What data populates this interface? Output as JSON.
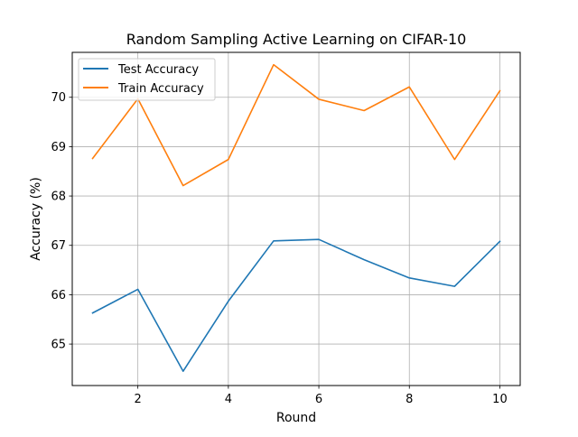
{
  "chart_data": {
    "type": "line",
    "title": "Random Sampling Active Learning on CIFAR-10",
    "xlabel": "Round",
    "ylabel": "Accuracy (%)",
    "x": [
      1,
      2,
      3,
      4,
      5,
      6,
      7,
      8,
      9,
      10
    ],
    "xlim": [
      0.55,
      10.45
    ],
    "ylim": [
      64.16,
      70.91
    ],
    "xticks": [
      2,
      4,
      6,
      8,
      10
    ],
    "yticks": [
      65,
      66,
      67,
      68,
      69,
      70
    ],
    "xtick_labels": [
      "2",
      "4",
      "6",
      "8",
      "10"
    ],
    "ytick_labels": [
      "65",
      "66",
      "67",
      "68",
      "69",
      "70"
    ],
    "grid": true,
    "legend": {
      "placement": "top-left",
      "entries": [
        {
          "label": "Test Accuracy",
          "color": "#1f77b4"
        },
        {
          "label": "Train Accuracy",
          "color": "#ff7f0e"
        }
      ]
    },
    "series": [
      {
        "name": "Test Accuracy",
        "color": "#1f77b4",
        "values": [
          65.63,
          66.11,
          64.45,
          65.87,
          67.09,
          67.12,
          66.71,
          66.34,
          66.17,
          67.08
        ]
      },
      {
        "name": "Train Accuracy",
        "color": "#ff7f0e",
        "values": [
          68.76,
          69.97,
          68.21,
          68.74,
          70.66,
          69.96,
          69.73,
          70.21,
          68.74,
          70.13
        ]
      }
    ]
  }
}
